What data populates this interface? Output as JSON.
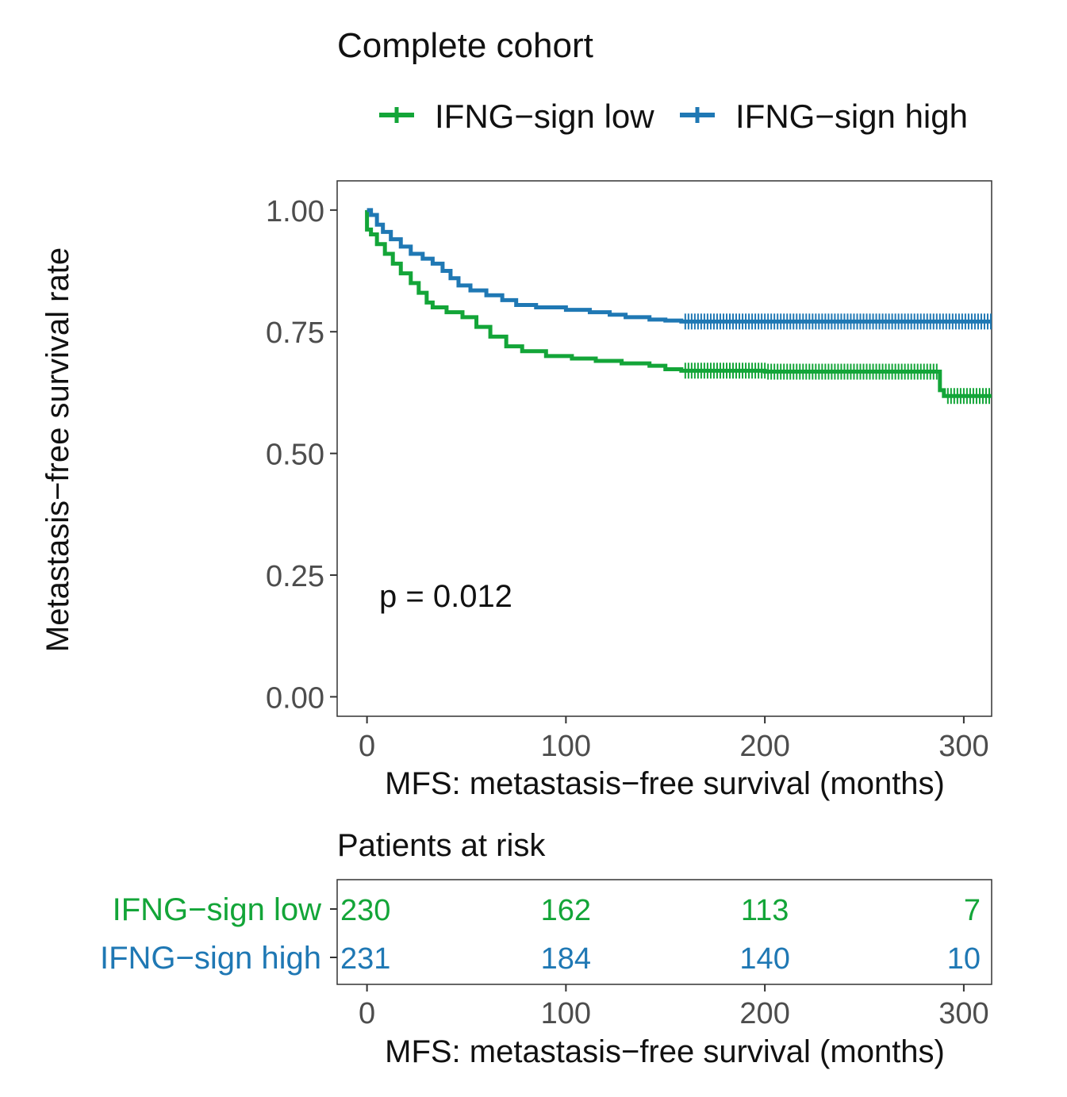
{
  "chart_data": {
    "type": "line",
    "subtype": "kaplan-meier",
    "title": "Complete cohort",
    "xlabel": "MFS: metastasis−free survival (months)",
    "ylabel": "Metastasis−free survival rate",
    "xlim": [
      -15,
      314
    ],
    "ylim": [
      -0.04,
      1.06
    ],
    "xticks": [
      0,
      100,
      200,
      300
    ],
    "xtick_labels": [
      "0",
      "100",
      "200",
      "300"
    ],
    "yticks": [
      0,
      0.25,
      0.5,
      0.75,
      1
    ],
    "ytick_labels": [
      "0.00",
      "0.25",
      "0.50",
      "0.75",
      "1.00"
    ],
    "grid": false,
    "legend_position": "top-right",
    "annotation": "p = 0.012",
    "series": [
      {
        "name": "IFNG−sign low",
        "color": "#13a538",
        "steps": [
          [
            0,
            1.0
          ],
          [
            0,
            0.96
          ],
          [
            2,
            0.95
          ],
          [
            5,
            0.93
          ],
          [
            9,
            0.91
          ],
          [
            13,
            0.89
          ],
          [
            17,
            0.87
          ],
          [
            22,
            0.85
          ],
          [
            26,
            0.83
          ],
          [
            30,
            0.81
          ],
          [
            33,
            0.8
          ],
          [
            40,
            0.79
          ],
          [
            48,
            0.78
          ],
          [
            55,
            0.76
          ],
          [
            62,
            0.74
          ],
          [
            70,
            0.72
          ],
          [
            78,
            0.71
          ],
          [
            90,
            0.7
          ],
          [
            103,
            0.695
          ],
          [
            115,
            0.69
          ],
          [
            128,
            0.685
          ],
          [
            142,
            0.68
          ],
          [
            150,
            0.673
          ],
          [
            158,
            0.67
          ],
          [
            200,
            0.668
          ],
          [
            288,
            0.668
          ],
          [
            288,
            0.63
          ],
          [
            290,
            0.618
          ],
          [
            314,
            0.618
          ]
        ],
        "censor_ranges": [
          [
            160,
            288
          ],
          [
            292,
            314
          ]
        ]
      },
      {
        "name": "IFNG−sign high",
        "color": "#1f78b4",
        "steps": [
          [
            0,
            1.0
          ],
          [
            2,
            0.99
          ],
          [
            5,
            0.97
          ],
          [
            8,
            0.955
          ],
          [
            12,
            0.94
          ],
          [
            17,
            0.925
          ],
          [
            22,
            0.91
          ],
          [
            28,
            0.9
          ],
          [
            33,
            0.89
          ],
          [
            38,
            0.875
          ],
          [
            42,
            0.86
          ],
          [
            46,
            0.845
          ],
          [
            52,
            0.835
          ],
          [
            60,
            0.825
          ],
          [
            68,
            0.815
          ],
          [
            75,
            0.805
          ],
          [
            85,
            0.8
          ],
          [
            100,
            0.795
          ],
          [
            112,
            0.79
          ],
          [
            122,
            0.785
          ],
          [
            130,
            0.78
          ],
          [
            142,
            0.775
          ],
          [
            150,
            0.773
          ],
          [
            158,
            0.771
          ],
          [
            314,
            0.771
          ]
        ],
        "censor_ranges": [
          [
            160,
            314
          ]
        ]
      }
    ],
    "risk_table": {
      "title": "Patients at risk",
      "xlabel": "MFS: metastasis−free survival (months)",
      "times": [
        0,
        100,
        200,
        300
      ],
      "time_labels": [
        "0",
        "100",
        "200",
        "300"
      ],
      "rows": [
        {
          "label": "IFNG−sign low",
          "color": "#13a538",
          "counts": [
            "230",
            "162",
            "113",
            "7"
          ]
        },
        {
          "label": "IFNG−sign high",
          "color": "#1f78b4",
          "counts": [
            "231",
            "184",
            "140",
            "10"
          ]
        }
      ]
    }
  }
}
